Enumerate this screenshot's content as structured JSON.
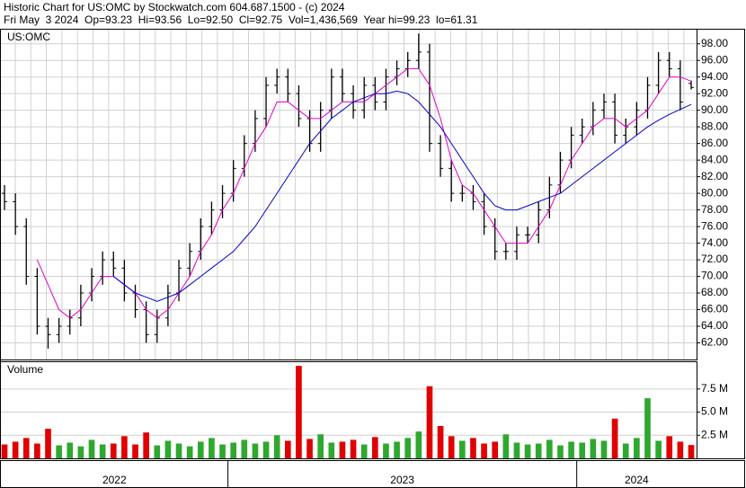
{
  "header": {
    "line1": "Historic Chart for US:OMC by Stockwatch.com 604.687.1500 - (c) 2024",
    "line2": "Fri May  3 2024  Op=93.23  Hi=93.56  Lo=92.50  Cl=92.75  Vol=1,436,569  Year hi=99.23  lo=61.31"
  },
  "chart_data": [
    {
      "type": "ohlc",
      "title": "US:OMC",
      "color": "#000000",
      "categories": [
        "2022",
        "2022",
        "2022",
        "2022",
        "2022",
        "2022",
        "2022",
        "2022",
        "2022",
        "2022",
        "2022",
        "2022",
        "2022",
        "2022",
        "2022",
        "2022",
        "2022",
        "2022",
        "2022",
        "2022",
        "2022",
        "2023",
        "2023",
        "2023",
        "2023",
        "2023",
        "2023",
        "2023",
        "2023",
        "2023",
        "2023",
        "2023",
        "2023",
        "2023",
        "2023",
        "2023",
        "2023",
        "2023",
        "2023",
        "2023",
        "2023",
        "2023",
        "2023",
        "2023",
        "2023",
        "2023",
        "2023",
        "2023",
        "2023",
        "2023",
        "2023",
        "2023",
        "2023",
        "2024",
        "2024",
        "2024",
        "2024",
        "2024",
        "2024",
        "2024",
        "2024",
        "2024",
        "2024",
        "2024"
      ],
      "open": [
        80,
        79,
        76,
        70,
        64,
        63,
        64,
        65,
        68,
        70,
        72,
        71,
        68,
        66,
        63,
        65,
        68,
        71,
        73,
        76,
        78,
        80,
        83,
        86,
        89,
        93,
        94,
        92,
        89,
        86,
        90,
        94,
        92,
        90,
        93,
        91,
        94,
        95,
        96,
        97,
        86,
        83,
        80,
        80,
        79,
        76,
        73,
        73,
        75,
        75,
        78,
        81,
        84,
        87,
        88,
        90,
        91,
        87,
        88,
        90,
        93,
        96,
        95,
        93.23
      ],
      "high": [
        81,
        80,
        77,
        71,
        65,
        65,
        66,
        69,
        71,
        73,
        73,
        72,
        69,
        67,
        66,
        69,
        72,
        74,
        77,
        79,
        81,
        84,
        87,
        90,
        94,
        95,
        95,
        93,
        90,
        91,
        95,
        95,
        93,
        94,
        94,
        95,
        96,
        97,
        99.23,
        98,
        87,
        84,
        81,
        81,
        80,
        77,
        74,
        76,
        76,
        79,
        82,
        85,
        88,
        89,
        91,
        92,
        92,
        89,
        91,
        94,
        97,
        97,
        96,
        93.56
      ],
      "low": [
        78,
        75,
        69,
        63,
        61.31,
        62,
        63,
        64,
        67,
        69,
        70,
        67,
        65,
        62,
        62,
        64,
        67,
        70,
        72,
        75,
        77,
        79,
        82,
        85,
        88,
        92,
        91,
        88,
        85,
        85,
        89,
        91,
        89,
        89,
        90,
        90,
        93,
        94,
        95,
        85,
        82,
        79,
        79,
        78,
        75,
        72,
        72,
        72,
        74,
        74,
        77,
        80,
        83,
        86,
        87,
        89,
        86,
        86,
        87,
        89,
        92,
        94,
        90,
        92.5
      ],
      "close": [
        79,
        76,
        70,
        64,
        63,
        64,
        65,
        68,
        70,
        72,
        71,
        68,
        66,
        63,
        65,
        68,
        71,
        73,
        76,
        78,
        80,
        83,
        86,
        89,
        93,
        94,
        92,
        89,
        86,
        90,
        94,
        92,
        90,
        93,
        91,
        94,
        95,
        96,
        97,
        86,
        83,
        80,
        80,
        79,
        76,
        73,
        73,
        75,
        75,
        78,
        81,
        84,
        87,
        88,
        90,
        91,
        87,
        88,
        90,
        93,
        96,
        95,
        91,
        92.75
      ],
      "lines": [
        {
          "color": "#e000c8",
          "values": [
            null,
            null,
            null,
            72,
            69,
            66,
            65,
            66,
            68,
            70,
            70,
            69,
            68,
            66,
            65,
            66,
            68,
            70,
            73,
            75,
            78,
            80,
            83,
            86,
            88,
            91,
            91,
            90,
            89,
            89,
            90,
            91,
            91,
            91,
            92,
            93,
            94,
            95,
            95,
            93,
            89,
            84,
            81,
            80,
            78,
            76,
            74,
            74,
            74,
            76,
            78,
            81,
            84,
            86,
            88,
            89,
            89,
            88,
            89,
            90,
            92,
            94,
            94,
            93.5
          ]
        },
        {
          "color": "#0000c8",
          "values": [
            null,
            null,
            null,
            null,
            null,
            null,
            null,
            null,
            null,
            null,
            70,
            69,
            68,
            67.5,
            67,
            67.5,
            68,
            69,
            70,
            71,
            72,
            73,
            74.5,
            76,
            78,
            80,
            82,
            84,
            86,
            87.5,
            89,
            90,
            91,
            91.5,
            92,
            92,
            92.3,
            92,
            91,
            89.5,
            88,
            86,
            84,
            82,
            80,
            78.5,
            78,
            78,
            78.5,
            79,
            79.5,
            80,
            81,
            82,
            83,
            84,
            85,
            86,
            87,
            88,
            88.8,
            89.5,
            90.1,
            90.7
          ]
        }
      ],
      "ylim": [
        60,
        99.7
      ],
      "yticks": [
        {
          "value": 62,
          "label": "62.00"
        },
        {
          "value": 64,
          "label": "64.00"
        },
        {
          "value": 66,
          "label": "66.00"
        },
        {
          "value": 68,
          "label": "68.00"
        },
        {
          "value": 70,
          "label": "70.00"
        },
        {
          "value": 72,
          "label": "72.00"
        },
        {
          "value": 74,
          "label": "74.00"
        },
        {
          "value": 76,
          "label": "76.00"
        },
        {
          "value": 78,
          "label": "78.00"
        },
        {
          "value": 80,
          "label": "80.00"
        },
        {
          "value": 82,
          "label": "82.00"
        },
        {
          "value": 84,
          "label": "84.00"
        },
        {
          "value": 86,
          "label": "86.00"
        },
        {
          "value": 88,
          "label": "88.00"
        },
        {
          "value": 90,
          "label": "90.00"
        },
        {
          "value": 92,
          "label": "92.00"
        },
        {
          "value": 94,
          "label": "94.00"
        },
        {
          "value": 96,
          "label": "96.00"
        },
        {
          "value": 98,
          "label": "98.00"
        }
      ],
      "grid": true
    },
    {
      "type": "bar",
      "title": "Volume",
      "up_color": "#2ea82e",
      "down_color": "#e00000",
      "values": [
        1.5,
        1.8,
        2.2,
        1.6,
        3.2,
        1.4,
        1.7,
        1.3,
        2.0,
        1.5,
        1.6,
        2.4,
        1.5,
        2.8,
        1.4,
        1.9,
        1.6,
        1.3,
        1.8,
        2.2,
        1.5,
        1.7,
        2.0,
        1.6,
        1.8,
        2.5,
        1.9,
        10,
        2.1,
        2.6,
        1.7,
        1.8,
        2.0,
        1.5,
        2.3,
        1.6,
        1.8,
        2.2,
        2.9,
        7.8,
        3.5,
        2.4,
        1.9,
        2.2,
        1.6,
        1.8,
        2.6,
        1.7,
        1.5,
        1.6,
        2.0,
        1.4,
        1.8,
        1.7,
        2.1,
        1.9,
        4.3,
        1.6,
        2.2,
        6.5,
        1.9,
        2.4,
        1.8,
        1.44
      ],
      "ylim": [
        0,
        10.4
      ],
      "yticks": [
        {
          "value": 2.5,
          "label": "2.5 M"
        },
        {
          "value": 5,
          "label": "5.0 M"
        },
        {
          "value": 7.5,
          "label": "7.5 M"
        }
      ],
      "grid": true
    }
  ]
}
